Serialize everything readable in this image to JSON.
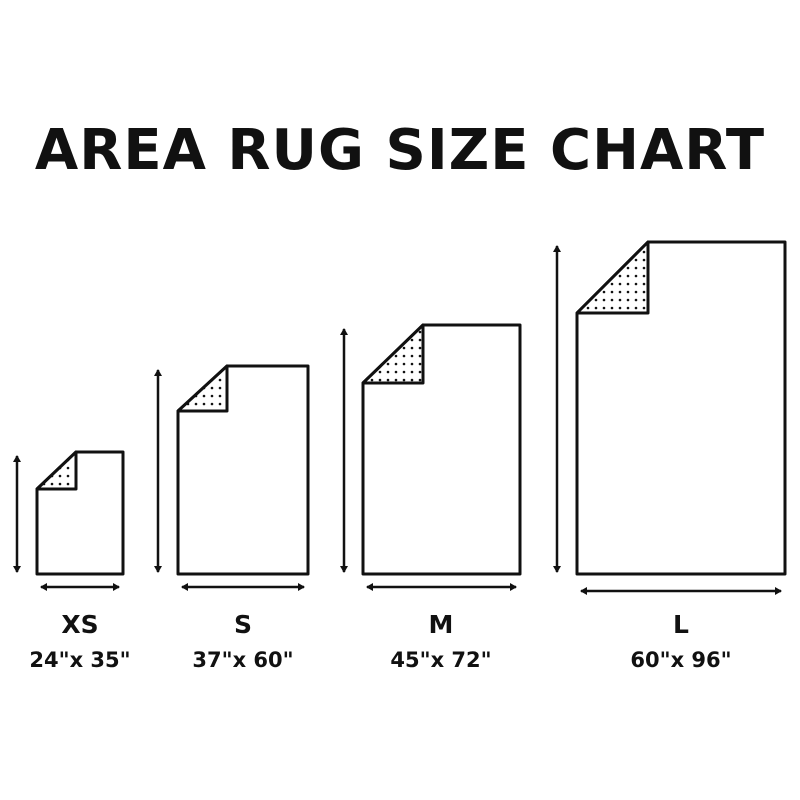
{
  "title": "AREA RUG SIZE CHART",
  "colors": {
    "ink": "#111111",
    "background": "#ffffff"
  },
  "rugs": [
    {
      "size": "XS",
      "dimensions": "24\"x 35\"",
      "width_in": 24,
      "length_in": 35
    },
    {
      "size": "S",
      "dimensions": "37\"x 60\"",
      "width_in": 37,
      "length_in": 60
    },
    {
      "size": "M",
      "dimensions": "45\"x 72\"",
      "width_in": 45,
      "length_in": 72
    },
    {
      "size": "L",
      "dimensions": "60\"x 96\"",
      "width_in": 60,
      "length_in": 96
    }
  ]
}
